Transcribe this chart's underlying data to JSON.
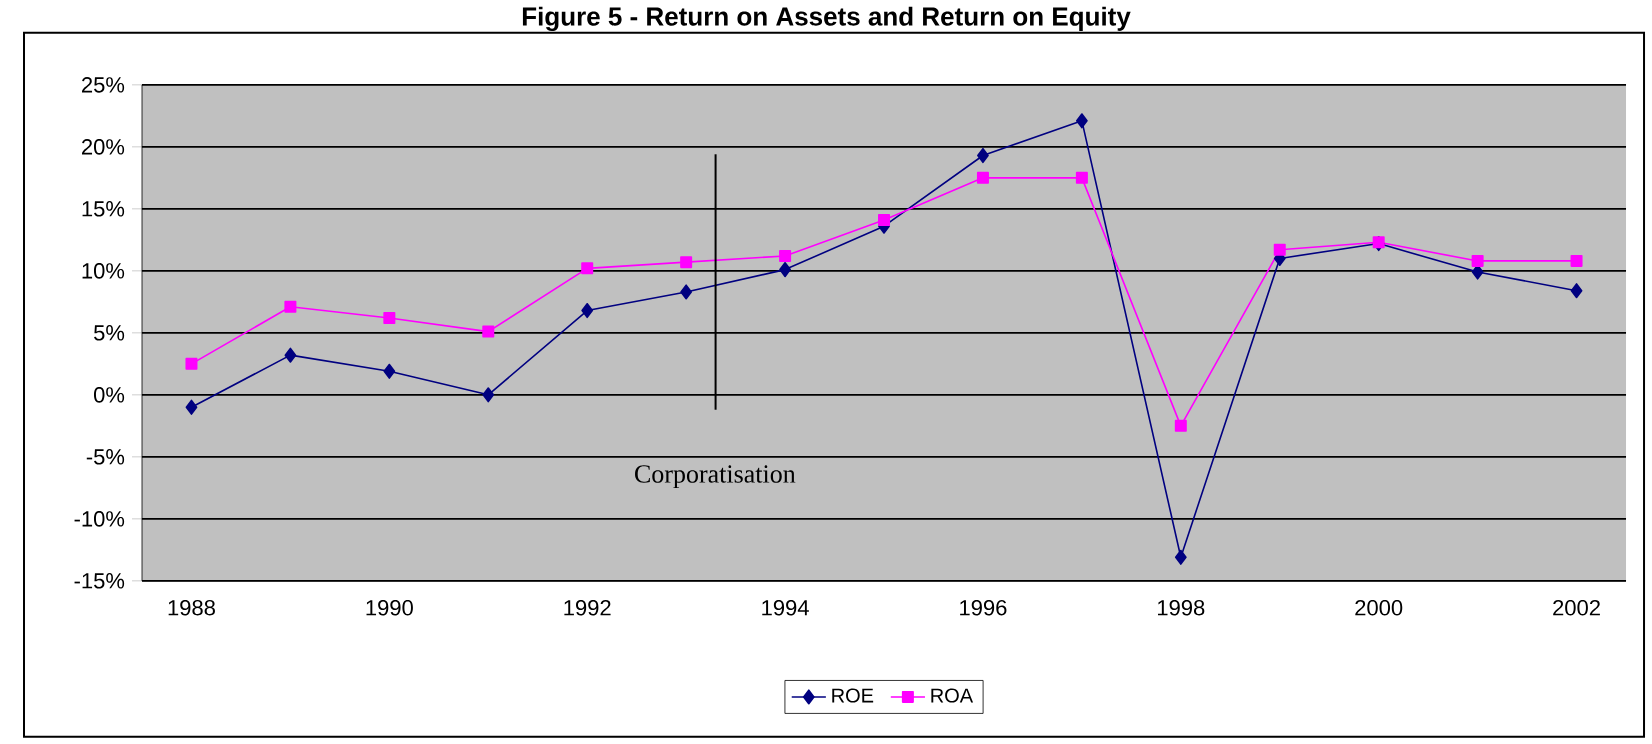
{
  "chart_data": {
    "type": "line",
    "title": "Figure 5 - Return on Assets and Return on Equity",
    "categories": [
      "1988",
      null,
      "1990",
      null,
      "1992",
      null,
      "1994",
      null,
      "1996",
      null,
      "1998",
      null,
      "2000",
      null,
      "2002"
    ],
    "series": [
      {
        "name": "ROE",
        "color": "#000080",
        "marker": "diamond",
        "values": [
          -1.0,
          3.2,
          1.9,
          0.0,
          6.8,
          8.3,
          10.1,
          13.6,
          19.3,
          22.1,
          -13.1,
          11.0,
          12.2,
          9.9,
          8.4
        ]
      },
      {
        "name": "ROA",
        "color": "#ff00ff",
        "marker": "square",
        "values": [
          2.5,
          7.1,
          6.2,
          5.1,
          10.2,
          10.7,
          11.2,
          14.1,
          17.5,
          17.5,
          -2.5,
          11.7,
          12.3,
          10.8,
          10.8
        ]
      }
    ],
    "ylim": [
      -15,
      25
    ],
    "yticks": [
      {
        "value": -15,
        "label": "-15%"
      },
      {
        "value": -10,
        "label": "-10%"
      },
      {
        "value": -5,
        "label": "-5%"
      },
      {
        "value": 0,
        "label": "0%"
      },
      {
        "value": 5,
        "label": "5%"
      },
      {
        "value": 10,
        "label": "10%"
      },
      {
        "value": 15,
        "label": "15%"
      },
      {
        "value": 20,
        "label": "20%"
      },
      {
        "value": 25,
        "label": "25%"
      }
    ],
    "annotations": [
      "Corporatisation"
    ],
    "grid": "y",
    "legend": "bottom",
    "line_style": "solid"
  }
}
